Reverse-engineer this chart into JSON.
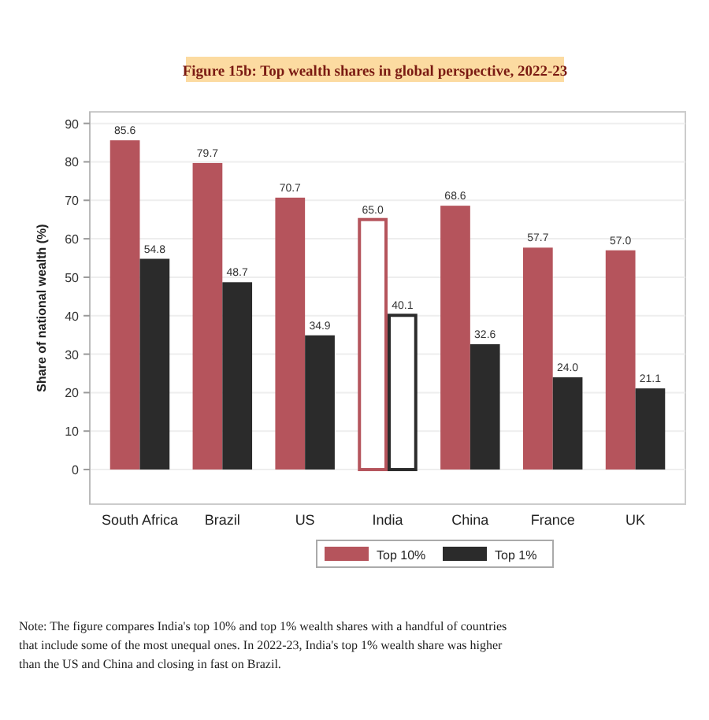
{
  "chart_data": {
    "type": "bar",
    "title": "Figure 15b: Top wealth shares in global perspective, 2022-23",
    "ylabel": "Share of national wealth (%)",
    "categories": [
      "South Africa",
      "Brazil",
      "US",
      "India",
      "China",
      "France",
      "UK"
    ],
    "series": [
      {
        "name": "Top 10%",
        "color": "#b5545c",
        "colors": [
          "#b5545c",
          "#b5545c",
          "#b5545c",
          "#ffffff",
          "#b5545c",
          "#b5545c",
          "#b5545c"
        ],
        "values": [
          85.6,
          79.7,
          70.7,
          65.0,
          68.6,
          57.7,
          57.0
        ],
        "value_labels": [
          "85.6",
          "79.7",
          "70.7",
          "65.0",
          "68.6",
          "57.7",
          "57.0"
        ]
      },
      {
        "name": "Top 1%",
        "color": "#2b2b2b",
        "colors": [
          "#2b2b2b",
          "#2b2b2b",
          "#2b2b2b",
          "#ffffff",
          "#2b2b2b",
          "#2b2b2b",
          "#2b2b2b"
        ],
        "values": [
          54.8,
          48.7,
          34.9,
          40.1,
          32.6,
          24.0,
          21.1
        ],
        "value_labels": [
          "54.8",
          "48.7",
          "34.9",
          "40.1",
          "32.6",
          "24.0",
          "21.1"
        ]
      }
    ],
    "ylim": [
      -9,
      93
    ],
    "yticks": [
      0,
      10,
      20,
      30,
      40,
      50,
      60,
      70,
      80,
      90
    ],
    "grid": "y",
    "legend": "bottom",
    "annotations": [
      "Note: The figure compares India's top 10% and top 1% wealth shares with a handful of countries that include some of the most unequal ones. In 2022-23, India's top 1% wealth share was higher than the US and China and closing in fast on Brazil."
    ]
  }
}
